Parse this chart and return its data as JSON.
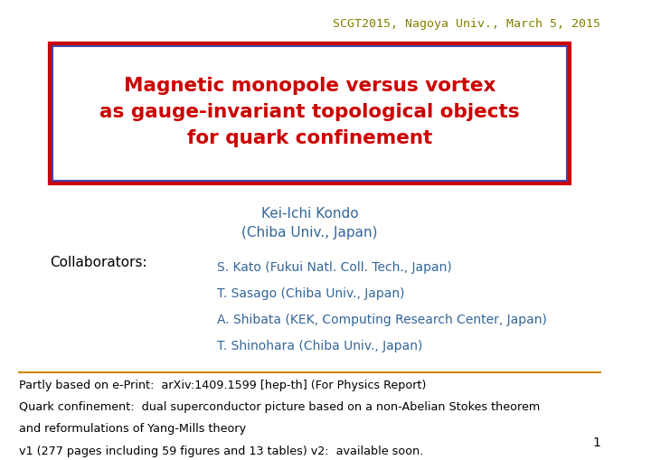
{
  "header": "SCGT2015, Nagoya Univ., March 5, 2015",
  "header_color": "#808000",
  "title_lines": [
    "Magnetic monopole versus vortex",
    "as gauge-invariant topological objects",
    "for quark confinement"
  ],
  "title_color": "#cc0000",
  "title_box_edge_color_outer": "#cc0000",
  "title_box_edge_color_inner": "#4444aa",
  "author_line1": "Kei-Ichi Kondo",
  "author_line2": "(Chiba Univ., Japan)",
  "author_color": "#336699",
  "collaborators_label": "Collaborators:",
  "collaborators_label_color": "#000000",
  "collaborators": [
    "S. Kato (Fukui Natl. Coll. Tech., Japan)",
    "T. Sasago (Chiba Univ., Japan)",
    "A. Shibata (KEK, Computing Research Center, Japan)",
    "T. Shinohara (Chiba Univ., Japan)"
  ],
  "collaborators_color": "#336699",
  "separator_color": "#cc8800",
  "footer_lines": [
    "Partly based on e-Print:  arXiv:1409.1599 [hep-th] (For Physics Report)",
    "Quark confinement:  dual superconductor picture based on a non-Abelian Stokes theorem",
    "and reformulations of Yang-Mills theory",
    "v1 (277 pages including 59 figures and 13 tables) v2:  available soon."
  ],
  "footer_color": "#000000",
  "page_number": "1",
  "page_number_color": "#000000",
  "background_color": "#ffffff"
}
